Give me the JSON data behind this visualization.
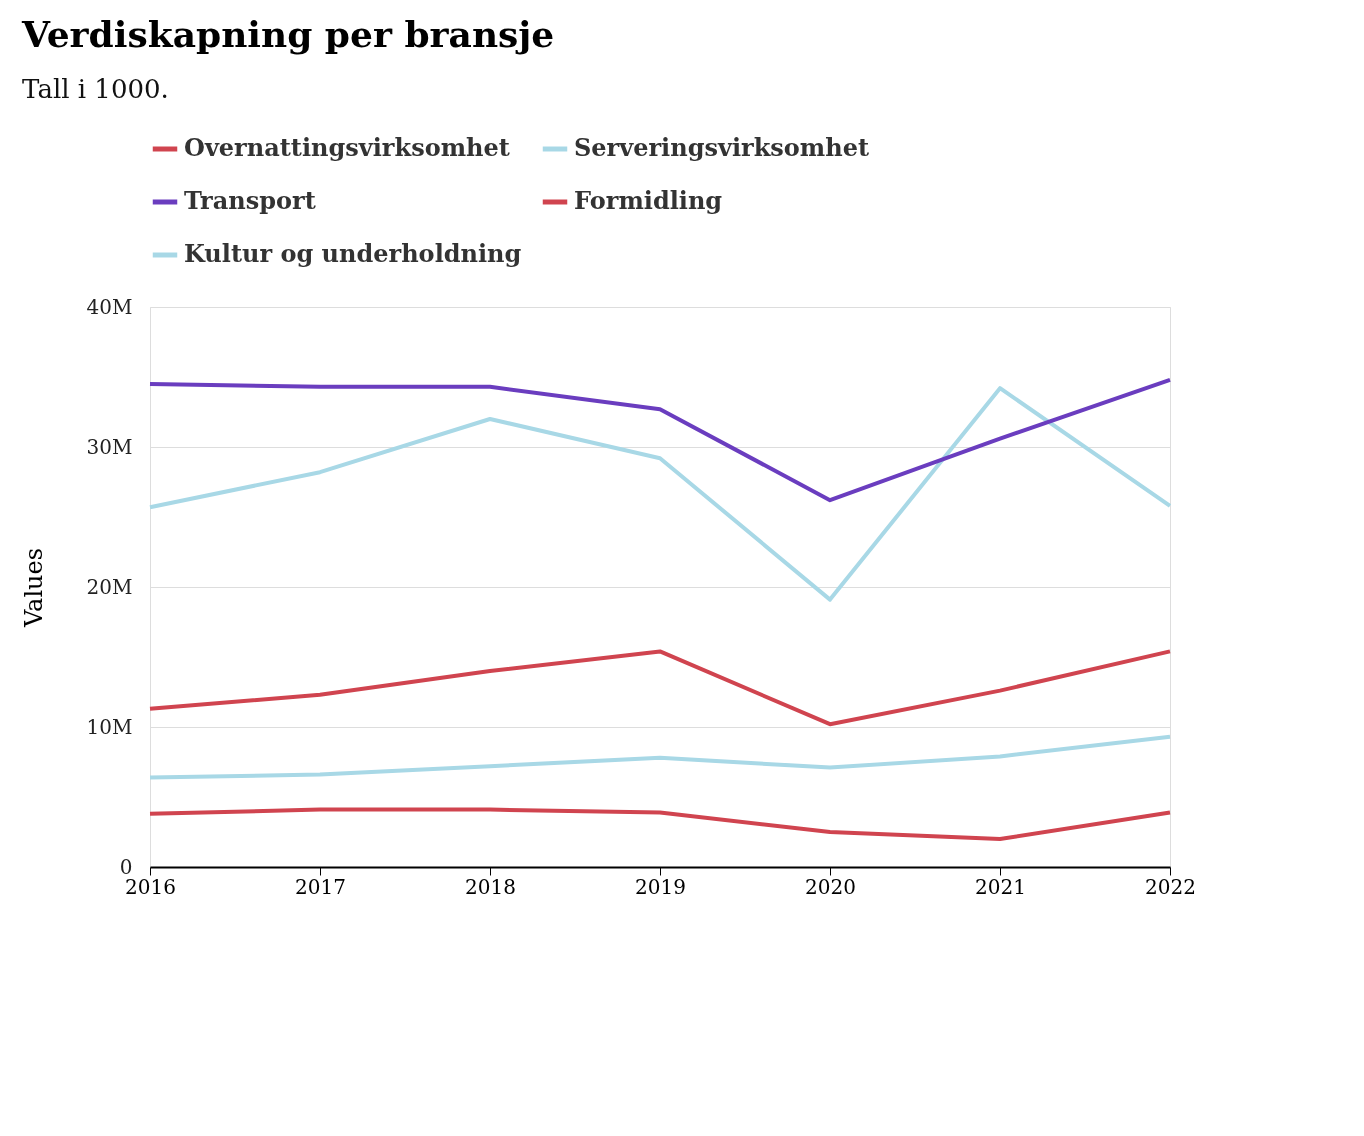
{
  "chart_data": {
    "type": "line",
    "title": "Verdiskapning per bransje",
    "subtitle": "Tall i 1000.",
    "ylabel": "Values",
    "x": [
      2016,
      2017,
      2018,
      2019,
      2020,
      2021,
      2022
    ],
    "xlim": [
      2016,
      2022
    ],
    "xticks": [
      2016,
      2017,
      2018,
      2019,
      2020,
      2021,
      2022
    ],
    "ylim": [
      0,
      40
    ],
    "yticks": [
      0,
      {
        "value": 10,
        "label": "10M"
      },
      {
        "value": 20,
        "label": "20M"
      },
      {
        "value": 30,
        "label": "30M"
      },
      {
        "value": 40,
        "label": "40M"
      }
    ],
    "grid": "y",
    "legend": "top left",
    "marker": "none",
    "line_style": "solid",
    "series": [
      {
        "name": "Overnattingsvirksomhet",
        "color": "#d0444f",
        "values": [
          11.3,
          12.3,
          14.0,
          15.4,
          10.2,
          12.6,
          15.4
        ]
      },
      {
        "name": "Serveringsvirksomhet",
        "color": "#a8d8e6",
        "values": [
          25.7,
          28.2,
          32.0,
          29.2,
          19.1,
          34.2,
          25.8
        ]
      },
      {
        "name": "Transport",
        "color": "#6a3dbf",
        "values": [
          34.5,
          34.3,
          34.3,
          32.7,
          26.2,
          30.6,
          34.8
        ]
      },
      {
        "name": "Formidling",
        "color": "#d0444f",
        "values": [
          3.8,
          4.1,
          4.1,
          3.9,
          2.5,
          2.0,
          3.9
        ]
      },
      {
        "name": "Kultur og underholdning",
        "color": "#a8d8e6",
        "values": [
          6.4,
          6.6,
          7.2,
          7.8,
          7.1,
          7.9,
          9.3
        ]
      }
    ]
  }
}
